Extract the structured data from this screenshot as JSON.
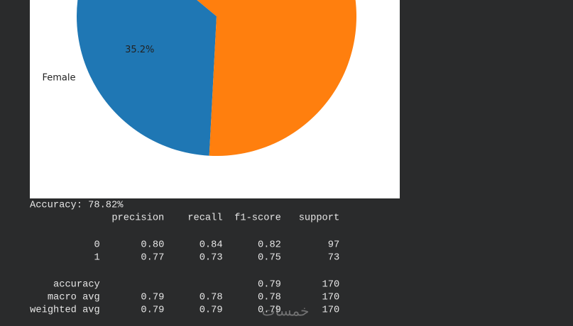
{
  "chart_data": {
    "type": "pie",
    "categories": [
      "Female",
      null
    ],
    "values": [
      35.2,
      64.8
    ],
    "value_labels": [
      "35.2%",
      null
    ],
    "colors": [
      "#1f77b4",
      "#ff7f0e"
    ]
  },
  "output": {
    "accuracy_line": "Accuracy: 78.82%",
    "report": {
      "header": [
        "precision",
        "recall",
        "f1-score",
        "support"
      ],
      "rows": [
        [
          "0",
          "0.80",
          "0.84",
          "0.82",
          "97"
        ],
        [
          "1",
          "0.77",
          "0.73",
          "0.75",
          "73"
        ],
        [
          "accuracy",
          null,
          null,
          "0.79",
          "170"
        ],
        [
          "macro avg",
          "0.79",
          "0.78",
          "0.78",
          "170"
        ],
        [
          "weighted avg",
          "0.79",
          "0.79",
          "0.79",
          "170"
        ]
      ]
    }
  },
  "watermark": "خمسات"
}
